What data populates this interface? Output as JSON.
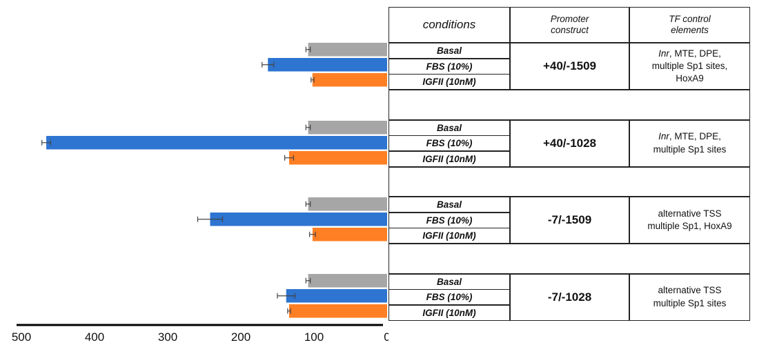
{
  "chart_data": {
    "type": "bar",
    "orientation": "horizontal",
    "x_reversed": true,
    "xlim": [
      0,
      500
    ],
    "x_ticks": [
      500,
      400,
      300,
      200,
      100,
      0
    ],
    "colors": {
      "Basal": "#a6a6a6",
      "FBS (10%)": "#2e74d1",
      "IGFII (10nM)": "#ff7f24"
    },
    "groups": [
      {
        "construct": "+40/-1509",
        "tf_elements": [
          "Inr, MTE, DPE,",
          "multiple Sp1 sites,",
          "HoxA9"
        ],
        "bars": [
          {
            "condition": "Basal",
            "value": 108,
            "error": 3
          },
          {
            "condition": "FBS (10%)",
            "value": 163,
            "error": 8
          },
          {
            "condition": "IGFII (10nM)",
            "value": 102,
            "error": 2
          }
        ]
      },
      {
        "construct": "+40/-1028",
        "tf_elements": [
          "Inr, MTE, DPE,",
          "multiple Sp1 sites"
        ],
        "bars": [
          {
            "condition": "Basal",
            "value": 108,
            "error": 3
          },
          {
            "condition": "FBS (10%)",
            "value": 466,
            "error": 6
          },
          {
            "condition": "IGFII (10nM)",
            "value": 134,
            "error": 6
          }
        ]
      },
      {
        "construct": "-7/-1509",
        "tf_elements": [
          "alternative TSS",
          "multiple Sp1, HoxA9"
        ],
        "bars": [
          {
            "condition": "Basal",
            "value": 108,
            "error": 3
          },
          {
            "condition": "FBS (10%)",
            "value": 242,
            "error": 17
          },
          {
            "condition": "IGFII (10nM)",
            "value": 102,
            "error": 4
          }
        ]
      },
      {
        "construct": "-7/-1028",
        "tf_elements": [
          "alternative TSS",
          "multiple Sp1 sites"
        ],
        "bars": [
          {
            "condition": "Basal",
            "value": 108,
            "error": 3
          },
          {
            "condition": "FBS (10%)",
            "value": 138,
            "error": 12
          },
          {
            "condition": "IGFII (10nM)",
            "value": 134,
            "error": 2
          }
        ]
      }
    ]
  },
  "table": {
    "headers": {
      "conditions": "conditions",
      "promoter_construct": [
        "Promoter",
        "construct"
      ],
      "tf_control": [
        "TF control",
        "elements"
      ]
    },
    "conditions": [
      "Basal",
      "FBS (10%)",
      "IGFII (10nM)"
    ]
  }
}
